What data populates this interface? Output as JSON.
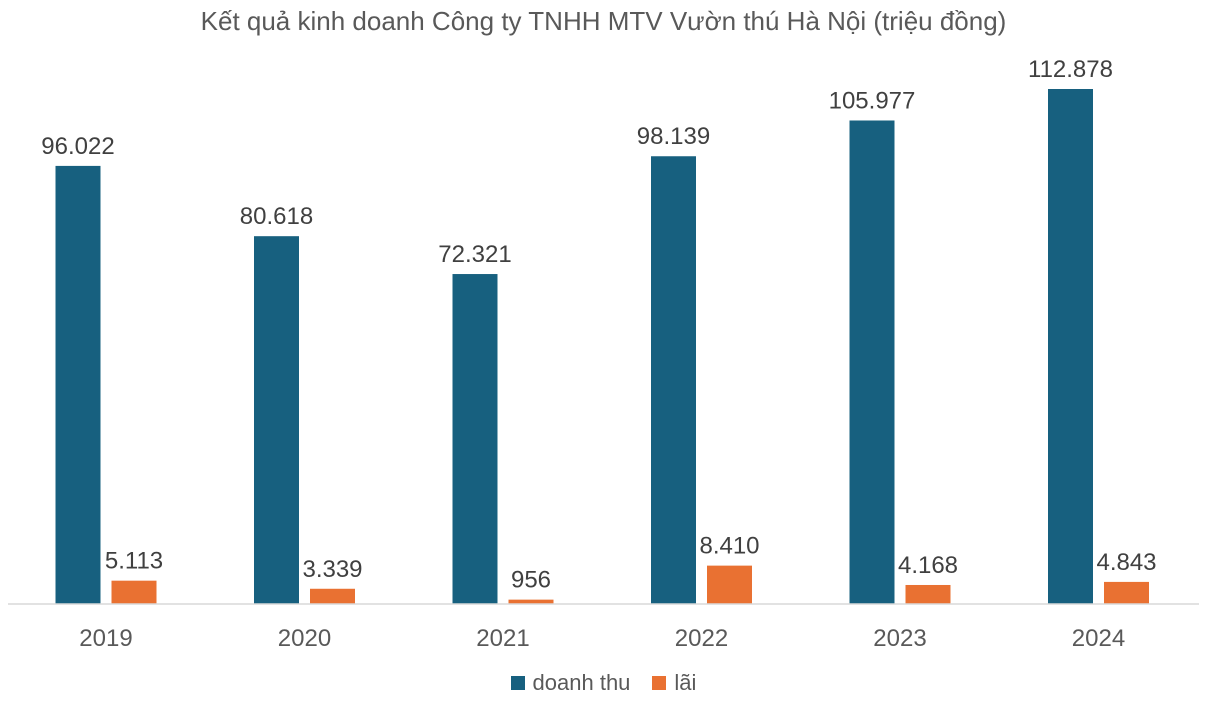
{
  "chart_data": {
    "type": "bar",
    "title": "Kết quả kinh doanh Công ty TNHH MTV Vườn thú Hà Nội (triệu đồng)",
    "xlabel": "",
    "ylabel": "",
    "categories": [
      "2019",
      "2020",
      "2021",
      "2022",
      "2023",
      "2024"
    ],
    "series": [
      {
        "name": "doanh thu",
        "color": "#17607f",
        "values": [
          96022,
          80618,
          72321,
          98139,
          105977,
          112878
        ],
        "labels": [
          "96.022",
          "80.618",
          "72.321",
          "98.139",
          "105.977",
          "112.878"
        ]
      },
      {
        "name": "lãi",
        "color": "#e97132",
        "values": [
          5113,
          3339,
          956,
          8410,
          4168,
          4843
        ],
        "labels": [
          "5.113",
          "3.339",
          "956",
          "8.410",
          "4.168",
          "4.843"
        ]
      }
    ],
    "ylim": [
      0,
      120000
    ],
    "grid": false,
    "legend_position": "bottom"
  }
}
